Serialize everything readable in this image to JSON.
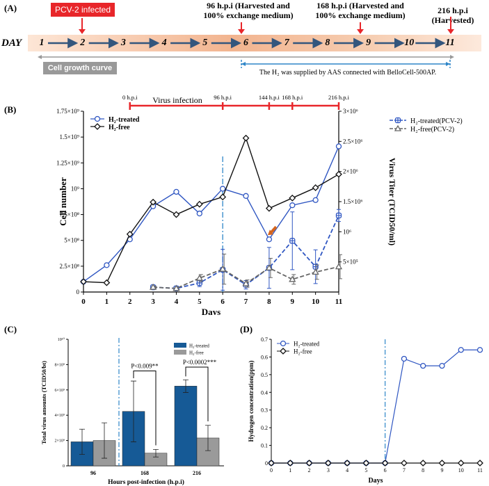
{
  "panel_labels": {
    "a": "(A)",
    "b": "(B)",
    "c": "(C)",
    "d": "(D)"
  },
  "timeline": {
    "day_label": "DAY",
    "days": [
      "1",
      "2",
      "3",
      "4",
      "5",
      "6",
      "7",
      "8",
      "9",
      "10",
      "11"
    ],
    "infection_label": "PCV-2 infected",
    "event1": "96 h.p.i (Harvested and 100% exchange medium)",
    "event2": "168 h.p.i (Harvested and 100% exchange medium)",
    "event3": "216 h.p.i (Harvested)",
    "growth_curve_label": "Cell growth curve",
    "h2_supply_label": "The H₂ was supplied by AAS connected with BelloCell-500AP.",
    "colors": {
      "red": "#e8262a",
      "arrow": "#33567d",
      "bar": "#f2b48f",
      "blue": "#2e86c8"
    }
  },
  "chart_data": [
    {
      "id": "B",
      "type": "line",
      "xlabel": "Days",
      "ylabel": "Cell number",
      "y2label": "Virus Titer (TCID50/ml)",
      "x": [
        0,
        1,
        2,
        3,
        4,
        5,
        6,
        7,
        8,
        9,
        10,
        11
      ],
      "xlim": [
        0,
        11
      ],
      "ylim": [
        0,
        1750000000
      ],
      "y2lim": [
        0,
        3000000
      ],
      "ytick_labels": [
        "0",
        "2.5×10⁸",
        "5×10⁸",
        "7.5×10⁸",
        "10⁹",
        "1.25×10⁹",
        "1.5×10⁹",
        "1.75×10⁹"
      ],
      "y2tick_labels": [
        "5×10⁵",
        "10⁶",
        "1.5×10⁶",
        "2×10⁶",
        "2.5×10⁶",
        "3×10⁶"
      ],
      "series": [
        {
          "name": "H₂-treated",
          "axis": "left",
          "color": "#2f56c2",
          "marker": "circle",
          "values": [
            100000000,
            260000000,
            510000000,
            830000000,
            970000000,
            760000000,
            1000000000,
            930000000,
            510000000,
            840000000,
            890000000,
            1410000000
          ]
        },
        {
          "name": "H₂-free",
          "axis": "left",
          "color": "#111111",
          "marker": "diamond",
          "values": [
            100000000,
            90000000,
            560000000,
            870000000,
            750000000,
            850000000,
            920000000,
            1490000000,
            810000000,
            910000000,
            1010000000,
            1140000000
          ]
        },
        {
          "name": "H₂-treated(PCV-2)",
          "axis": "right",
          "color": "#2f56c2",
          "marker": "plus",
          "dashed": true,
          "x": [
            3,
            4,
            5,
            6,
            7,
            8,
            9,
            10,
            11
          ],
          "values": [
            80000,
            60000,
            150000,
            370000,
            120000,
            400000,
            850000,
            420000,
            1270000
          ],
          "errors": [
            20000,
            20000,
            60000,
            340000,
            70000,
            340000,
            480000,
            280000,
            100000
          ]
        },
        {
          "name": "H₂-free(PCV-2)",
          "axis": "right",
          "color": "#666666",
          "marker": "triangle",
          "dashed": true,
          "x": [
            3,
            4,
            5,
            6,
            7,
            8,
            9,
            10,
            11
          ],
          "values": [
            80000,
            60000,
            230000,
            380000,
            140000,
            400000,
            210000,
            330000,
            420000
          ],
          "errors": [
            20000,
            20000,
            60000,
            250000,
            60000,
            160000,
            80000,
            120000,
            200000
          ]
        }
      ],
      "infection_axis": {
        "title": "Virus infection",
        "labels": [
          "0 h.p.i",
          "96 h.p.i",
          "144 h.p.i",
          "168 h.p.i",
          "216 h.p.i"
        ],
        "days": [
          2,
          6,
          8,
          9,
          11
        ]
      },
      "vline_day": 6
    },
    {
      "id": "C",
      "type": "bar",
      "xlabel": "Hours post-infection (h.p.i)",
      "ylabel": "Total virus amounts (TCID50/bt)",
      "categories": [
        "96",
        "168",
        "216"
      ],
      "ylim": [
        0,
        10000000000
      ],
      "ytick_labels": [
        "0",
        "2×10⁹",
        "4×10⁹",
        "6×10⁹",
        "8×10⁹",
        "10¹⁰"
      ],
      "series": [
        {
          "name": "H₂-treated",
          "color": "#165a96",
          "values": [
            1900000000,
            4300000000,
            6300000000
          ],
          "errors": [
            1000000000,
            2400000000,
            500000000
          ]
        },
        {
          "name": "H₂-free",
          "color": "#9a9a9a",
          "values": [
            2000000000,
            1000000000,
            2200000000
          ],
          "errors": [
            1400000000,
            300000000,
            1000000000
          ]
        }
      ],
      "annotations": [
        "P<0.009**",
        "P<0.0002***"
      ]
    },
    {
      "id": "D",
      "type": "line",
      "xlabel": "Days",
      "ylabel": "Hydrogen concentration(ppm)",
      "x": [
        0,
        1,
        2,
        3,
        4,
        5,
        6,
        7,
        8,
        9,
        10,
        11
      ],
      "ylim": [
        0,
        0.7
      ],
      "ytick_labels": [
        "0",
        "0.1",
        "0.2",
        "0.3",
        "0.4",
        "0.5",
        "0.6",
        "0.7"
      ],
      "series": [
        {
          "name": "H₂-treated",
          "color": "#2f56c2",
          "marker": "circle",
          "values": [
            0,
            0,
            0,
            0,
            0,
            0,
            0,
            0.59,
            0.55,
            0.55,
            0.64,
            0.64
          ]
        },
        {
          "name": "H₂-free",
          "color": "#111111",
          "marker": "diamond",
          "values": [
            0,
            0,
            0,
            0,
            0,
            0,
            0,
            0,
            0,
            0,
            0,
            0
          ]
        }
      ],
      "vline_day": 6
    }
  ]
}
